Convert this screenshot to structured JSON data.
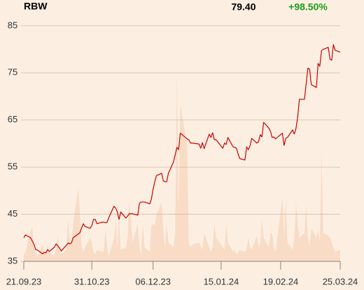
{
  "header": {
    "symbol": "RBW",
    "last": "79.40",
    "change": "+98.50%"
  },
  "chart_data": {
    "type": "line",
    "x": [
      "21.09.23",
      "22.09.23",
      "25.09.23",
      "26.09.23",
      "27.09.23",
      "28.09.23",
      "29.09.23",
      "02.10.23",
      "03.10.23",
      "04.10.23",
      "05.10.23",
      "06.10.23",
      "09.10.23",
      "10.10.23",
      "11.10.23",
      "12.10.23",
      "13.10.23",
      "16.10.23",
      "17.10.23",
      "18.10.23",
      "19.10.23",
      "20.10.23",
      "23.10.23",
      "24.10.23",
      "25.10.23",
      "26.10.23",
      "27.10.23",
      "30.10.23",
      "31.10.23",
      "01.11.23",
      "02.11.23",
      "03.11.23",
      "06.11.23",
      "07.11.23",
      "08.11.23",
      "09.11.23",
      "10.11.23",
      "13.11.23",
      "14.11.23",
      "15.11.23",
      "16.11.23",
      "17.11.23",
      "20.11.23",
      "21.11.23",
      "22.11.23",
      "24.11.23",
      "27.11.23",
      "28.11.23",
      "29.11.23",
      "30.11.23",
      "01.12.23",
      "04.12.23",
      "05.12.23",
      "06.12.23",
      "07.12.23",
      "08.12.23",
      "11.12.23",
      "12.12.23",
      "13.12.23",
      "14.12.23",
      "15.12.23",
      "18.12.23",
      "19.12.23",
      "20.12.23",
      "21.12.23",
      "22.12.23",
      "26.12.23",
      "27.12.23",
      "28.12.23",
      "29.12.23",
      "02.01.24",
      "03.01.24",
      "04.01.24",
      "05.01.24",
      "08.01.24",
      "09.01.24",
      "10.01.24",
      "11.01.24",
      "12.01.24",
      "16.01.24",
      "17.01.24",
      "18.01.24",
      "19.01.24",
      "22.01.24",
      "23.01.24",
      "24.01.24",
      "25.01.24",
      "26.01.24",
      "29.01.24",
      "30.01.24",
      "31.01.24",
      "01.02.24",
      "02.02.24",
      "05.02.24",
      "06.02.24",
      "07.02.24",
      "08.02.24",
      "09.02.24",
      "12.02.24",
      "13.02.24",
      "14.02.24",
      "15.02.24",
      "16.02.24",
      "20.02.24",
      "21.02.24",
      "22.02.24",
      "23.02.24",
      "26.02.24",
      "27.02.24",
      "28.02.24",
      "29.02.24",
      "01.03.24",
      "04.03.24",
      "05.03.24",
      "06.03.24",
      "07.03.24",
      "08.03.24",
      "11.03.24",
      "12.03.24",
      "13.03.24",
      "14.03.24",
      "15.03.24",
      "18.03.24",
      "19.03.24",
      "20.03.24",
      "21.03.24",
      "22.03.24",
      "25.03.24"
    ],
    "series": [
      {
        "kind": "line",
        "color": "#cc0000",
        "values": [
          40.0,
          40.6,
          40.0,
          39.3,
          38.6,
          37.5,
          37.4,
          36.6,
          36.9,
          36.8,
          37.5,
          37.1,
          38.0,
          38.7,
          38.3,
          37.8,
          37.2,
          38.4,
          38.9,
          38.7,
          38.9,
          40.0,
          40.8,
          41.1,
          42.1,
          43.0,
          42.4,
          42.0,
          42.6,
          43.9,
          43.9,
          43.0,
          43.3,
          43.3,
          43.2,
          43.3,
          44.3,
          46.7,
          46.3,
          45.5,
          43.9,
          45.5,
          44.2,
          44.6,
          45.1,
          45.1,
          44.8,
          47.3,
          47.6,
          47.6,
          47.6,
          47.2,
          48.2,
          50.3,
          51.9,
          53.2,
          53.7,
          52.1,
          51.9,
          51.9,
          53.7,
          56.1,
          57.6,
          59.2,
          58.7,
          62.2,
          61.0,
          60.8,
          60.1,
          60.1,
          59.9,
          59.0,
          60.2,
          58.9,
          62.0,
          61.3,
          62.3,
          60.8,
          60.8,
          59.0,
          60.1,
          59.8,
          61.3,
          59.3,
          59.2,
          59.0,
          57.8,
          56.8,
          56.5,
          59.3,
          58.7,
          59.5,
          61.1,
          60.1,
          60.4,
          61.9,
          61.4,
          64.5,
          63.3,
          62.6,
          61.3,
          61.4,
          61.0,
          62.2,
          59.6,
          61.1,
          61.3,
          62.9,
          62.0,
          63.2,
          65.6,
          69.4,
          69.4,
          72.7,
          76.0,
          75.8,
          72.5,
          71.9,
          77.0,
          76.4,
          79.7,
          80.0,
          80.4,
          77.9,
          77.7,
          81.0,
          79.8,
          79.4
        ]
      },
      {
        "kind": "area",
        "color": "#f8dcc6",
        "values": [
          36.5,
          37,
          41.5,
          42.3,
          38,
          37,
          36,
          38.5,
          37,
          36.5,
          38.5,
          37,
          36,
          38,
          40.5,
          37,
          36.5,
          37.5,
          43.8,
          40,
          38,
          43,
          50.5,
          45,
          38,
          37,
          38,
          40,
          39,
          37,
          36.5,
          37.5,
          37,
          37,
          42,
          38,
          36,
          40,
          43.5,
          38,
          44,
          37.5,
          38,
          40,
          48,
          39,
          43,
          38,
          36.5,
          43,
          38,
          37,
          42.5,
          43,
          42.5,
          45,
          47.5,
          42,
          38,
          43,
          39,
          38,
          41,
          75,
          45,
          68.2,
          60,
          39,
          38,
          38.5,
          39,
          38,
          37.5,
          41,
          38,
          37,
          38,
          43,
          40,
          38,
          37.5,
          43,
          39,
          37,
          37.5,
          36.5,
          37,
          37.5,
          37,
          37.5,
          40,
          38,
          37.5,
          40.5,
          38,
          39,
          44,
          40,
          38,
          41,
          41,
          38,
          37,
          48.6,
          40,
          48,
          39,
          37.5,
          40,
          47.5,
          43,
          40,
          41,
          47,
          40,
          38,
          42,
          40,
          41.5,
          39,
          58.6,
          41,
          40.5,
          40,
          39,
          38,
          37,
          37.5
        ]
      }
    ],
    "xlim": [
      "21.09.23",
      "25.03.24"
    ],
    "xticks": [
      "21.09.23",
      "31.10.23",
      "06.12.23",
      "15.01.24",
      "19.02.24",
      "25.03.24"
    ],
    "ylim": [
      35,
      87.5
    ],
    "yticks": [
      35,
      45,
      55,
      65,
      75,
      85
    ],
    "grid": true
  }
}
